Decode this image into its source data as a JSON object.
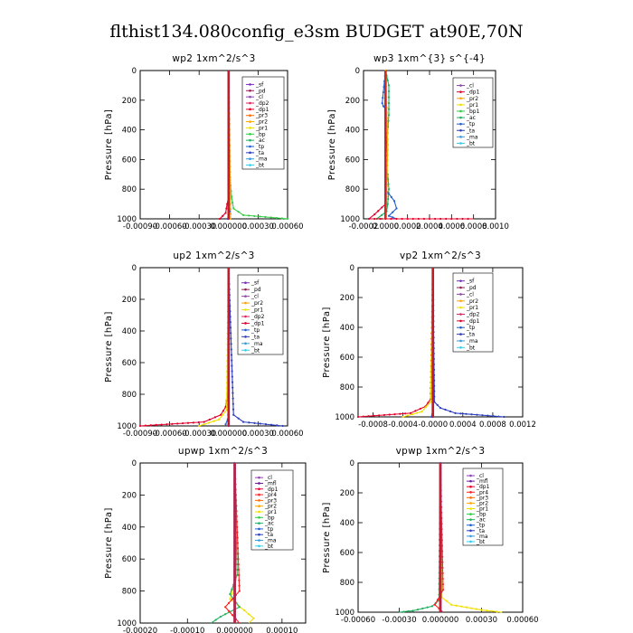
{
  "figure": {
    "title": "flthist134.080config_e3sm  BUDGET at90E,70N"
  },
  "colors": {
    "sf": "#7b2fbe",
    "pd": "#9a1b5b",
    "cl": "#8e44ad",
    "dp2": "#e0245e",
    "dp1": "#e4002b",
    "pr3": "#ff6a00",
    "pr2": "#ffa500",
    "pr1": "#f0e000",
    "pr4": "#ff2020",
    "mfl": "#6a1b9a",
    "bp": "#2ecc40",
    "ac": "#20b060",
    "tp": "#1f5fd0",
    "ta": "#2b3fbf",
    "ma": "#3a9ad9",
    "bt": "#30d0f0"
  },
  "chart_data": [
    {
      "type": "line",
      "title": "wp2   1xm^2/s^3",
      "ylabel": "Pressure  [hPa]",
      "xlim": [
        -0.0009,
        0.0006
      ],
      "ylim": [
        1000,
        0
      ],
      "xtick_values": [
        -0.0009,
        -0.0006,
        -0.0003,
        0,
        0.0003,
        0.0006
      ],
      "xtick_labels": [
        "-0.00090",
        "-0.00060",
        "-0.00030",
        "0.000000",
        "0.00030",
        "0.00060"
      ],
      "ytick_values": [
        0,
        200,
        400,
        600,
        800,
        1000
      ],
      "ytick_labels": [
        "0",
        "200",
        "400",
        "600",
        "800",
        "1000"
      ],
      "legend": [
        "_sf",
        "_pd",
        "_cl",
        "_dp2",
        "_dp1",
        "_pr3",
        "_pr2",
        "_pr1",
        "_bp",
        "_ac",
        "_tp",
        "_ta",
        "_ma",
        "_bt"
      ],
      "series": [
        {
          "key": "dp1",
          "x": [
            -9e-05,
            -3e-05,
            -1.5e-05,
            0,
            0
          ],
          "y": [
            1000,
            960,
            900,
            850,
            0
          ]
        },
        {
          "key": "bp",
          "x": [
            0.0006,
            0.00015,
            5e-05,
            3e-05,
            1e-05,
            0
          ],
          "y": [
            1000,
            975,
            930,
            850,
            700,
            0
          ]
        },
        {
          "key": "pr2",
          "x": [
            2e-05,
            2e-05,
            0
          ],
          "y": [
            1000,
            900,
            0
          ]
        },
        {
          "key": "sf",
          "x": [
            0,
            0
          ],
          "y": [
            1000,
            0
          ]
        },
        {
          "key": "tp",
          "x": [
            -1e-05,
            1e-05,
            0,
            0
          ],
          "y": [
            1000,
            950,
            900,
            0
          ]
        },
        {
          "key": "pd",
          "x": [
            0,
            0
          ],
          "y": [
            1000,
            0
          ]
        }
      ]
    },
    {
      "type": "line",
      "title": "wp3   1xm^{3} s^{-4}",
      "ylabel": "Pressure  [hPa]",
      "xlim": [
        -0.0002,
        0.001
      ],
      "ylim": [
        1000,
        0
      ],
      "xtick_values": [
        -0.0002,
        0,
        0.0002,
        0.0004,
        0.0006,
        0.0008,
        0.001
      ],
      "xtick_labels": [
        "-0.0002",
        "0.0000",
        "0.0002",
        "0.0004",
        "0.0006",
        "0.0008",
        "0.0010"
      ],
      "ytick_values": [
        0,
        200,
        400,
        600,
        800,
        1000
      ],
      "ytick_labels": [
        "0",
        "200",
        "400",
        "600",
        "800",
        "1000"
      ],
      "legend": [
        "_cl",
        "_dp1",
        "_pr2",
        "_pr1",
        "_bp1",
        "_ac",
        "_tp",
        "_ta",
        "_ma",
        "_bt"
      ],
      "series": [
        {
          "key": "ac",
          "x": [
            0,
            3e-05,
            3e-05,
            1e-05,
            0,
            2e-05,
            3e-05,
            2e-05,
            1e-05,
            -8e-05,
            1e-05
          ],
          "y": [
            0,
            100,
            300,
            500,
            650,
            700,
            800,
            900,
            950,
            1000,
            1000
          ]
        },
        {
          "key": "tp",
          "x": [
            0,
            -3e-05,
            -2e-05,
            0,
            0,
            8e-05,
            0.0001,
            3e-05,
            0.0001
          ],
          "y": [
            0,
            220,
            240,
            260,
            800,
            880,
            930,
            980,
            1000
          ]
        },
        {
          "key": "dp1",
          "x": [
            0,
            0,
            -0.0001,
            -0.00015,
            0.0008
          ],
          "y": [
            0,
            900,
            970,
            1000,
            1000
          ]
        },
        {
          "key": "cl",
          "x": [
            0,
            0
          ],
          "y": [
            0,
            1000
          ]
        },
        {
          "key": "pr2",
          "x": [
            0,
            2e-05,
            1e-05,
            0
          ],
          "y": [
            0,
            500,
            850,
            1000
          ]
        }
      ]
    },
    {
      "type": "line",
      "title": "up2   1xm^2/s^3",
      "ylabel": "Pressure  [hPa]",
      "xlim": [
        -0.0009,
        0.0006
      ],
      "ylim": [
        1000,
        0
      ],
      "xtick_values": [
        -0.0009,
        -0.0006,
        -0.0003,
        0,
        0.0003,
        0.0006
      ],
      "xtick_labels": [
        "-0.00090",
        "-0.00060",
        "-0.00030",
        "0.000000",
        "0.00030",
        "0.00060"
      ],
      "ytick_values": [
        0,
        200,
        400,
        600,
        800,
        1000
      ],
      "ytick_labels": [
        "0",
        "200",
        "400",
        "600",
        "800",
        "1000"
      ],
      "legend": [
        "_sf",
        "_pd",
        "_cl",
        "_pr2",
        "_pr1",
        "_dp2",
        "_dp1",
        "_tp",
        "_ta",
        "_ma",
        "_bt"
      ],
      "series": [
        {
          "key": "dp1",
          "x": [
            -0.0009,
            -0.00025,
            -8e-05,
            -3e-05,
            -1e-05,
            0
          ],
          "y": [
            1000,
            975,
            930,
            880,
            800,
            0
          ]
        },
        {
          "key": "pr1",
          "x": [
            -0.0003,
            -0.0001,
            -2e-05,
            0
          ],
          "y": [
            1000,
            960,
            900,
            0
          ]
        },
        {
          "key": "ta",
          "x": [
            0.00055,
            0.00015,
            5e-05,
            0
          ],
          "y": [
            1000,
            975,
            930,
            0
          ]
        },
        {
          "key": "tp",
          "x": [
            -3e-05,
            -1e-05,
            0,
            0
          ],
          "y": [
            990,
            960,
            900,
            0
          ]
        },
        {
          "key": "sf",
          "x": [
            0,
            0
          ],
          "y": [
            1000,
            0
          ]
        },
        {
          "key": "pd",
          "x": [
            0,
            0
          ],
          "y": [
            1000,
            0
          ]
        }
      ]
    },
    {
      "type": "line",
      "title": "vp2   1xm^2/s^3",
      "ylabel": "Pressure  [hPa]",
      "xlim": [
        -0.001,
        0.0012
      ],
      "ylim": [
        1000,
        0
      ],
      "xtick_values": [
        -0.0008,
        -0.0004,
        0,
        0.0004,
        0.0008,
        0.0012
      ],
      "xtick_labels": [
        "-0.0008",
        "-0.0004",
        "-0.0000",
        "0.0004",
        "0.0008",
        "0.0012"
      ],
      "ytick_values": [
        0,
        200,
        400,
        600,
        800,
        1000
      ],
      "ytick_labels": [
        "0",
        "200",
        "400",
        "600",
        "800",
        "1000"
      ],
      "legend": [
        "_sf",
        "_pd",
        "_cl",
        "_pr2",
        "_pr1",
        "_dp2",
        "_dp1",
        "_tp",
        "_ta",
        "_ma",
        "_bt"
      ],
      "series": [
        {
          "key": "dp1",
          "x": [
            -0.001,
            -0.0003,
            -0.0001,
            -3e-05,
            0
          ],
          "y": [
            1000,
            975,
            930,
            880,
            0
          ]
        },
        {
          "key": "pr1",
          "x": [
            -0.0004,
            -0.00015,
            -3e-05,
            0
          ],
          "y": [
            1000,
            965,
            900,
            0
          ]
        },
        {
          "key": "ta",
          "x": [
            0.00095,
            0.0003,
            0.0001,
            2e-05,
            0
          ],
          "y": [
            1000,
            975,
            940,
            900,
            0
          ]
        },
        {
          "key": "tp",
          "x": [
            -2e-05,
            0,
            0
          ],
          "y": [
            1000,
            950,
            0
          ]
        },
        {
          "key": "sf",
          "x": [
            0,
            0
          ],
          "y": [
            1000,
            0
          ]
        },
        {
          "key": "pd",
          "x": [
            0,
            0
          ],
          "y": [
            1000,
            0
          ]
        }
      ]
    },
    {
      "type": "line",
      "title": "upwp   1xm^2/s^3",
      "ylabel": "Pressure  [hPa]",
      "xlim": [
        -0.0002,
        0.00015
      ],
      "ylim": [
        1000,
        0
      ],
      "xtick_values": [
        -0.0002,
        -0.0001,
        0,
        0.0001
      ],
      "xtick_labels": [
        "-0.00020",
        "-0.00010",
        "0.000000",
        "0.00010"
      ],
      "ytick_values": [
        0,
        200,
        400,
        600,
        800,
        1000
      ],
      "ytick_labels": [
        "0",
        "200",
        "400",
        "600",
        "800",
        "1000"
      ],
      "legend": [
        "_cl",
        "_mfl",
        "_dp1",
        "_pr4",
        "_pr3",
        "_pr2",
        "_pr1",
        "_bp",
        "_ac",
        "_tp",
        "_ta",
        "_ma",
        "_bt"
      ],
      "series": [
        {
          "key": "pr1",
          "x": [
            0,
            5e-06,
            -1e-05,
            2e-05,
            4e-05,
            3e-05
          ],
          "y": [
            0,
            700,
            850,
            920,
            970,
            1000
          ]
        },
        {
          "key": "ac",
          "x": [
            0,
            5e-06,
            -1e-05,
            1e-05,
            -3e-05,
            -5e-05
          ],
          "y": [
            0,
            700,
            820,
            900,
            960,
            1000
          ]
        },
        {
          "key": "pr4",
          "x": [
            0,
            1e-05,
            -2e-05,
            1e-05
          ],
          "y": [
            0,
            800,
            900,
            1000
          ]
        },
        {
          "key": "mfl",
          "x": [
            0,
            0
          ],
          "y": [
            0,
            1000
          ]
        },
        {
          "key": "cl",
          "x": [
            0,
            0
          ],
          "y": [
            0,
            1000
          ]
        }
      ]
    },
    {
      "type": "line",
      "title": "vpwp   1xm^2/s^3",
      "ylabel": "Pressure  [hPa]",
      "xlim": [
        -0.0006,
        0.0006
      ],
      "ylim": [
        1000,
        0
      ],
      "xtick_values": [
        -0.0006,
        -0.0003,
        0,
        0.0003,
        0.0006
      ],
      "xtick_labels": [
        "-0.00060",
        "-0.00030",
        "0.000000",
        "0.00030",
        "0.00060"
      ],
      "ytick_values": [
        0,
        200,
        400,
        600,
        800,
        1000
      ],
      "ytick_labels": [
        "0",
        "200",
        "400",
        "600",
        "800",
        "1000"
      ],
      "legend": [
        "_cl",
        "_mfl",
        "_dp1",
        "_pr4",
        "_pr3",
        "_pr2",
        "_pr1",
        "_bp",
        "_ac",
        "_tp",
        "_ta",
        "_ma",
        "_bt"
      ],
      "series": [
        {
          "key": "pr1",
          "x": [
            0,
            1e-05,
            8e-05,
            0.0003,
            0.00045
          ],
          "y": [
            0,
            900,
            950,
            985,
            1000
          ]
        },
        {
          "key": "ac",
          "x": [
            0,
            -1e-05,
            -6e-05,
            -0.0002,
            -0.0003
          ],
          "y": [
            0,
            920,
            960,
            990,
            1000
          ]
        },
        {
          "key": "pr4",
          "x": [
            0,
            2e-05,
            -4e-05,
            2e-05
          ],
          "y": [
            0,
            850,
            950,
            1000
          ]
        },
        {
          "key": "mfl",
          "x": [
            0,
            0
          ],
          "y": [
            0,
            1000
          ]
        },
        {
          "key": "cl",
          "x": [
            0,
            0
          ],
          "y": [
            0,
            1000
          ]
        }
      ]
    }
  ]
}
